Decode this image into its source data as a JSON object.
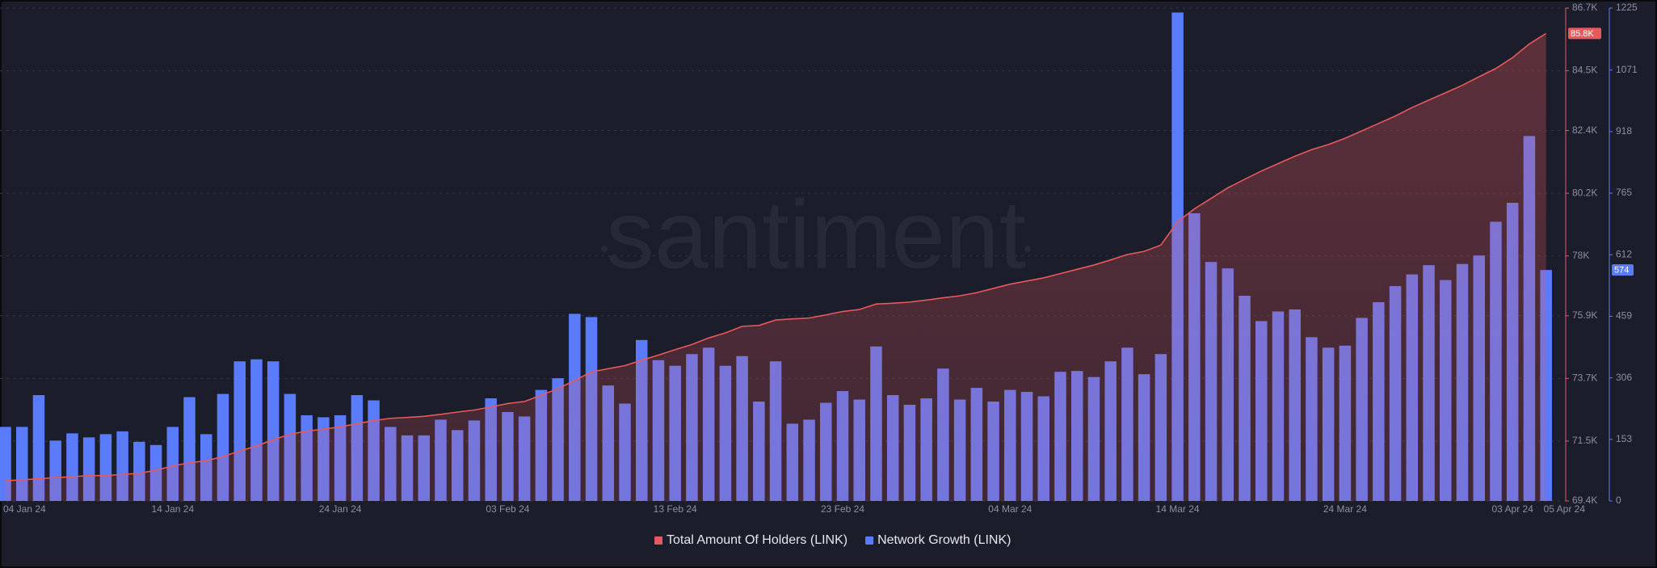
{
  "chart_data": {
    "type": "combo",
    "watermark": "santiment",
    "categories": [
      "04 Jan 24",
      null,
      null,
      null,
      null,
      null,
      null,
      null,
      null,
      null,
      "14 Jan 24",
      null,
      null,
      null,
      null,
      null,
      null,
      null,
      null,
      null,
      "24 Jan 24",
      null,
      null,
      null,
      null,
      null,
      null,
      null,
      null,
      null,
      "03 Feb 24",
      null,
      null,
      null,
      null,
      null,
      null,
      null,
      null,
      null,
      "13 Feb 24",
      null,
      null,
      null,
      null,
      null,
      null,
      null,
      null,
      null,
      "23 Feb 24",
      null,
      null,
      null,
      null,
      null,
      null,
      null,
      null,
      null,
      "04 Mar 24",
      null,
      null,
      null,
      null,
      null,
      null,
      null,
      null,
      null,
      "14 Mar 24",
      null,
      null,
      null,
      null,
      null,
      null,
      null,
      null,
      null,
      "24 Mar 24",
      null,
      null,
      null,
      null,
      null,
      null,
      null,
      null,
      null,
      "03 Apr 24",
      null,
      "05 Apr 24"
    ],
    "series": [
      {
        "name": "Total Amount Of Holders (LINK)",
        "type": "area",
        "axis": "y",
        "color": "#e8585c",
        "values": [
          70110,
          70140,
          70180,
          70220,
          70250,
          70290,
          70290,
          70330,
          70370,
          70480,
          70630,
          70740,
          70810,
          70960,
          71150,
          71330,
          71550,
          71740,
          71850,
          71920,
          72000,
          72110,
          72220,
          72300,
          72330,
          72370,
          72440,
          72520,
          72590,
          72700,
          72820,
          72890,
          73110,
          73340,
          73630,
          73930,
          74040,
          74150,
          74340,
          74520,
          74710,
          74890,
          75120,
          75300,
          75530,
          75560,
          75750,
          75790,
          75820,
          75930,
          76050,
          76120,
          76310,
          76340,
          76380,
          76450,
          76530,
          76600,
          76710,
          76860,
          77010,
          77120,
          77230,
          77380,
          77530,
          77680,
          77860,
          78050,
          78160,
          78380,
          79200,
          79650,
          80020,
          80390,
          80690,
          80980,
          81240,
          81500,
          81730,
          81910,
          82130,
          82390,
          82650,
          82910,
          83210,
          83470,
          83730,
          83990,
          84290,
          84580,
          84960,
          85440,
          85810
        ],
        "value_labels": [
          null,
          null,
          null,
          null,
          null,
          null,
          null,
          null,
          null,
          null,
          null,
          null,
          null,
          null,
          null,
          null,
          null,
          null,
          null,
          null,
          null,
          null,
          null,
          null,
          null,
          null,
          null,
          null,
          null,
          null,
          null,
          null,
          null,
          null,
          null,
          null,
          null,
          null,
          null,
          null,
          null,
          null,
          null,
          null,
          null,
          null,
          null,
          null,
          null,
          null,
          null,
          null,
          null,
          null,
          null,
          null,
          null,
          null,
          null,
          null,
          null,
          null,
          null,
          null,
          null,
          null,
          null,
          null,
          null,
          null,
          null,
          null,
          null,
          null,
          null,
          null,
          null,
          null,
          null,
          null,
          null,
          null,
          null,
          null,
          null,
          null,
          null,
          null,
          null,
          null,
          null,
          null,
          "85.8K"
        ]
      },
      {
        "name": "Network Growth (LINK)",
        "type": "bar",
        "axis": "y2",
        "color": "#5b7cfa",
        "values": [
          184,
          184,
          263,
          150,
          168,
          158,
          166,
          173,
          147,
          139,
          184,
          258,
          166,
          266,
          347,
          352,
          347,
          266,
          213,
          208,
          213,
          263,
          250,
          184,
          163,
          163,
          202,
          176,
          200,
          255,
          221,
          210,
          276,
          305,
          465,
          457,
          287,
          242,
          400,
          350,
          336,
          365,
          381,
          336,
          360,
          247,
          347,
          192,
          202,
          244,
          273,
          252,
          384,
          263,
          239,
          255,
          329,
          252,
          281,
          247,
          276,
          271,
          260,
          321,
          323,
          308,
          347,
          381,
          315,
          365,
          1214,
          715,
          594,
          578,
          510,
          447,
          471,
          476,
          407,
          381,
          386,
          455,
          494,
          534,
          563,
          586,
          549,
          589,
          610,
          694,
          741,
          907,
          574
        ],
        "value_labels": [
          null,
          null,
          null,
          null,
          null,
          null,
          null,
          null,
          null,
          null,
          null,
          null,
          null,
          null,
          null,
          null,
          null,
          null,
          null,
          null,
          null,
          null,
          null,
          null,
          null,
          null,
          null,
          null,
          null,
          null,
          null,
          null,
          null,
          null,
          null,
          null,
          null,
          null,
          null,
          null,
          null,
          null,
          null,
          null,
          null,
          null,
          null,
          null,
          null,
          null,
          null,
          null,
          null,
          null,
          null,
          null,
          null,
          null,
          null,
          null,
          null,
          null,
          null,
          null,
          null,
          null,
          null,
          null,
          null,
          null,
          null,
          null,
          null,
          null,
          null,
          null,
          null,
          null,
          null,
          null,
          null,
          null,
          null,
          null,
          null,
          null,
          null,
          null,
          null,
          null,
          null,
          null,
          "574"
        ]
      }
    ],
    "ylim": [
      69400,
      86700
    ],
    "yticks": [
      {
        "value": 69400,
        "label": "69.4K"
      },
      {
        "value": 71500,
        "label": "71.5K"
      },
      {
        "value": 73700,
        "label": "73.7K"
      },
      {
        "value": 75900,
        "label": "75.9K"
      },
      {
        "value": 78000,
        "label": "78K"
      },
      {
        "value": 80200,
        "label": "80.2K"
      },
      {
        "value": 82400,
        "label": "82.4K"
      },
      {
        "value": 84500,
        "label": "84.5K"
      },
      {
        "value": 86700,
        "label": "86.7K"
      }
    ],
    "y2lim": [
      0,
      1225
    ],
    "y2ticks": [
      0,
      153,
      306,
      459,
      612,
      765,
      918,
      1071,
      1225
    ],
    "grid": true,
    "legend": "bottom"
  }
}
